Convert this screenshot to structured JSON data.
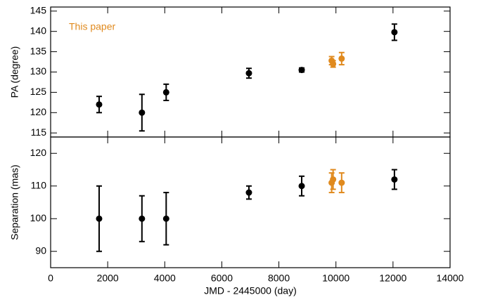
{
  "chart_data": [
    {
      "type": "scatter",
      "ylabel": "PA (degree)",
      "xlim": [
        0,
        14000
      ],
      "xticks": [
        0,
        2000,
        4000,
        6000,
        8000,
        10000,
        12000,
        14000
      ],
      "ylim": [
        114,
        146
      ],
      "yticks": [
        115,
        120,
        125,
        130,
        135,
        140,
        145
      ],
      "series": [
        {
          "color": "#000000",
          "x": [
            1700,
            3200,
            4050,
            6950,
            8800,
            12050
          ],
          "values": [
            122,
            120,
            125,
            129.7,
            130.5,
            139.8
          ],
          "errors": [
            2,
            4.5,
            2,
            1.2,
            0.5,
            2
          ]
        },
        {
          "name": "This paper",
          "color": "#e08a1e",
          "x": [
            9850,
            9900,
            10200
          ],
          "values": [
            132.8,
            132,
            133.3
          ],
          "errors": [
            1,
            0.8,
            1.5
          ]
        }
      ]
    },
    {
      "type": "scatter",
      "ylabel": "Separation (mas)",
      "xlabel": "JMD - 2445000 (day)",
      "xlim": [
        0,
        14000
      ],
      "xticks": [
        0,
        2000,
        4000,
        6000,
        8000,
        10000,
        12000,
        14000
      ],
      "ylim": [
        85,
        125
      ],
      "yticks": [
        90,
        100,
        110,
        120
      ],
      "series": [
        {
          "color": "#000000",
          "x": [
            1700,
            3200,
            4050,
            6950,
            8800,
            12050
          ],
          "values": [
            100,
            100,
            100,
            108,
            110,
            112
          ],
          "errors": [
            10,
            7,
            8,
            2,
            3,
            3
          ]
        },
        {
          "color": "#e08a1e",
          "x": [
            9850,
            9900,
            10200
          ],
          "values": [
            111,
            112,
            111
          ],
          "errors": [
            3,
            3,
            3
          ]
        }
      ]
    }
  ]
}
